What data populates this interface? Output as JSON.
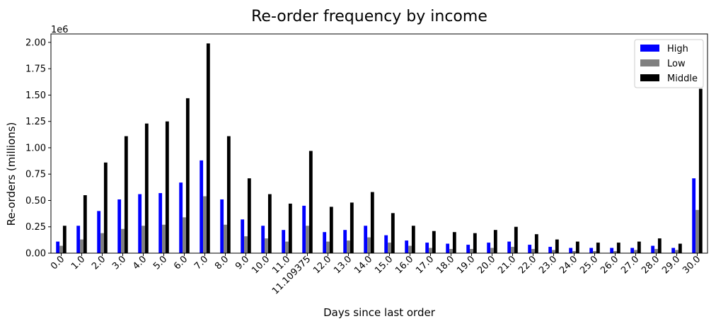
{
  "chart_data": {
    "type": "bar",
    "title": "Re-order frequency by income",
    "xlabel": "Days since last order",
    "ylabel": "Re-orders (millions)",
    "y_offset_text": "1e6",
    "ylim": [
      0,
      2080000
    ],
    "yticks": [
      0,
      250000,
      500000,
      750000,
      1000000,
      1250000,
      1500000,
      1750000,
      2000000
    ],
    "ytick_labels": [
      "0.00",
      "0.25",
      "0.50",
      "0.75",
      "1.00",
      "1.25",
      "1.50",
      "1.75",
      "2.00"
    ],
    "legend_position": "top-right",
    "categories": [
      "0.0",
      "1.0",
      "2.0",
      "3.0",
      "4.0",
      "5.0",
      "6.0",
      "7.0",
      "8.0",
      "9.0",
      "10.0",
      "11.0",
      "11.109375",
      "12.0",
      "13.0",
      "14.0",
      "15.0",
      "16.0",
      "17.0",
      "18.0",
      "19.0",
      "20.0",
      "21.0",
      "22.0",
      "23.0",
      "24.0",
      "25.0",
      "26.0",
      "27.0",
      "28.0",
      "29.0",
      "30.0"
    ],
    "series": [
      {
        "name": "High",
        "color": "#0000ff",
        "values": [
          110000,
          260000,
          400000,
          510000,
          560000,
          570000,
          670000,
          880000,
          510000,
          320000,
          260000,
          220000,
          450000,
          200000,
          220000,
          260000,
          170000,
          120000,
          100000,
          90000,
          80000,
          100000,
          110000,
          80000,
          60000,
          50000,
          50000,
          50000,
          50000,
          70000,
          50000,
          710000
        ]
      },
      {
        "name": "Low",
        "color": "#808080",
        "values": [
          70000,
          130000,
          190000,
          230000,
          260000,
          270000,
          340000,
          540000,
          270000,
          160000,
          140000,
          110000,
          260000,
          110000,
          120000,
          150000,
          100000,
          70000,
          50000,
          40000,
          40000,
          50000,
          60000,
          40000,
          30000,
          20000,
          20000,
          20000,
          30000,
          40000,
          30000,
          410000
        ]
      },
      {
        "name": "Middle",
        "color": "#000000",
        "values": [
          260000,
          550000,
          860000,
          1110000,
          1230000,
          1250000,
          1470000,
          1990000,
          1110000,
          710000,
          560000,
          470000,
          970000,
          440000,
          480000,
          580000,
          380000,
          260000,
          210000,
          200000,
          190000,
          220000,
          250000,
          180000,
          130000,
          110000,
          100000,
          100000,
          110000,
          140000,
          90000,
          1560000
        ]
      }
    ]
  }
}
